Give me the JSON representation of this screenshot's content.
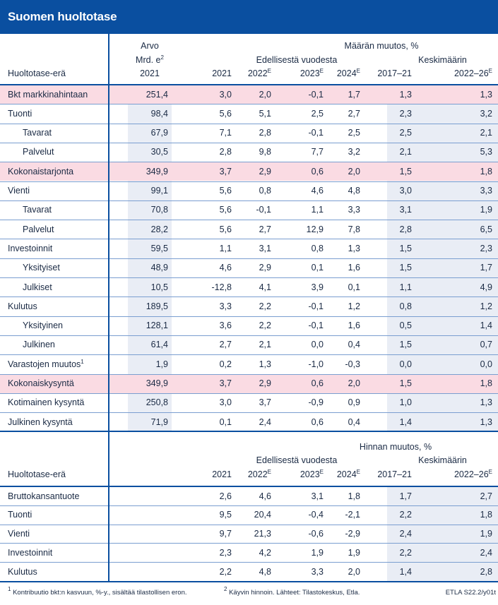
{
  "title": "Suomen huoltotase",
  "header1": {
    "col_label": "Huoltotase-erä",
    "value_line1": "Arvo",
    "value_line2": "Mrd. e",
    "value_line2_sup": "2",
    "value_line3": "2021",
    "group_title": "Määrän muutos, %",
    "sub1": "Edellisestä vuodesta",
    "sub2": "Keskimäärin",
    "years": [
      {
        "label": "2021",
        "sup": ""
      },
      {
        "label": "2022",
        "sup": "E"
      },
      {
        "label": "2023",
        "sup": "E"
      },
      {
        "label": "2024",
        "sup": "E"
      },
      {
        "label": "2017–21",
        "sup": ""
      },
      {
        "label": "2022–26",
        "sup": "E"
      }
    ]
  },
  "rows1": [
    {
      "label": "Bkt markkinahintaan",
      "sup": "",
      "indent": false,
      "highlight": true,
      "value": "251,4",
      "cells": [
        "3,0",
        "2,0",
        "-0,1",
        "1,7",
        "1,3",
        "1,3"
      ]
    },
    {
      "label": "Tuonti",
      "sup": "",
      "indent": false,
      "highlight": false,
      "value": "98,4",
      "cells": [
        "5,6",
        "5,1",
        "2,5",
        "2,7",
        "2,3",
        "3,2"
      ]
    },
    {
      "label": "Tavarat",
      "sup": "",
      "indent": true,
      "highlight": false,
      "value": "67,9",
      "cells": [
        "7,1",
        "2,8",
        "-0,1",
        "2,5",
        "2,5",
        "2,1"
      ]
    },
    {
      "label": "Palvelut",
      "sup": "",
      "indent": true,
      "highlight": false,
      "value": "30,5",
      "cells": [
        "2,8",
        "9,8",
        "7,7",
        "3,2",
        "2,1",
        "5,3"
      ]
    },
    {
      "label": "Kokonaistarjonta",
      "sup": "",
      "indent": false,
      "highlight": true,
      "value": "349,9",
      "cells": [
        "3,7",
        "2,9",
        "0,6",
        "2,0",
        "1,5",
        "1,8"
      ]
    },
    {
      "label": "Vienti",
      "sup": "",
      "indent": false,
      "highlight": false,
      "value": "99,1",
      "cells": [
        "5,6",
        "0,8",
        "4,6",
        "4,8",
        "3,0",
        "3,3"
      ]
    },
    {
      "label": "Tavarat",
      "sup": "",
      "indent": true,
      "highlight": false,
      "value": "70,8",
      "cells": [
        "5,6",
        "-0,1",
        "1,1",
        "3,3",
        "3,1",
        "1,9"
      ]
    },
    {
      "label": "Palvelut",
      "sup": "",
      "indent": true,
      "highlight": false,
      "value": "28,2",
      "cells": [
        "5,6",
        "2,7",
        "12,9",
        "7,8",
        "2,8",
        "6,5"
      ]
    },
    {
      "label": "Investoinnit",
      "sup": "",
      "indent": false,
      "highlight": false,
      "value": "59,5",
      "cells": [
        "1,1",
        "3,1",
        "0,8",
        "1,3",
        "1,5",
        "2,3"
      ]
    },
    {
      "label": "Yksityiset",
      "sup": "",
      "indent": true,
      "highlight": false,
      "value": "48,9",
      "cells": [
        "4,6",
        "2,9",
        "0,1",
        "1,6",
        "1,5",
        "1,7"
      ]
    },
    {
      "label": "Julkiset",
      "sup": "",
      "indent": true,
      "highlight": false,
      "value": "10,5",
      "cells": [
        "-12,8",
        "4,1",
        "3,9",
        "0,1",
        "1,1",
        "4,9"
      ]
    },
    {
      "label": "Kulutus",
      "sup": "",
      "indent": false,
      "highlight": false,
      "value": "189,5",
      "cells": [
        "3,3",
        "2,2",
        "-0,1",
        "1,2",
        "0,8",
        "1,2"
      ]
    },
    {
      "label": "Yksityinen",
      "sup": "",
      "indent": true,
      "highlight": false,
      "value": "128,1",
      "cells": [
        "3,6",
        "2,2",
        "-0,1",
        "1,6",
        "0,5",
        "1,4"
      ]
    },
    {
      "label": "Julkinen",
      "sup": "",
      "indent": true,
      "highlight": false,
      "value": "61,4",
      "cells": [
        "2,7",
        "2,1",
        "0,0",
        "0,4",
        "1,5",
        "0,7"
      ]
    },
    {
      "label": "Varastojen muutos",
      "sup": "1",
      "indent": false,
      "highlight": false,
      "value": "1,9",
      "cells": [
        "0,2",
        "1,3",
        "-1,0",
        "-0,3",
        "0,0",
        "0,0"
      ]
    },
    {
      "label": "Kokonaiskysyntä",
      "sup": "",
      "indent": false,
      "highlight": true,
      "value": "349,9",
      "cells": [
        "3,7",
        "2,9",
        "0,6",
        "2,0",
        "1,5",
        "1,8"
      ]
    },
    {
      "label": "Kotimainen kysyntä",
      "sup": "",
      "indent": false,
      "highlight": false,
      "value": "250,8",
      "cells": [
        "3,0",
        "3,7",
        "-0,9",
        "0,9",
        "1,0",
        "1,3"
      ]
    },
    {
      "label": "Julkinen kysyntä",
      "sup": "",
      "indent": false,
      "highlight": false,
      "value": "71,9",
      "cells": [
        "0,1",
        "2,4",
        "0,6",
        "0,4",
        "1,4",
        "1,3"
      ]
    }
  ],
  "header2": {
    "col_label": "Huoltotase-erä",
    "group_title": "Hinnan muutos, %",
    "sub1": "Edellisestä vuodesta",
    "sub2": "Keskimäärin",
    "years": [
      {
        "label": "2021",
        "sup": ""
      },
      {
        "label": "2022",
        "sup": "E"
      },
      {
        "label": "2023",
        "sup": "E"
      },
      {
        "label": "2024",
        "sup": "E"
      },
      {
        "label": "2017–21",
        "sup": ""
      },
      {
        "label": "2022–26",
        "sup": "E"
      }
    ]
  },
  "rows2": [
    {
      "label": "Bruttokansantuote",
      "cells": [
        "2,6",
        "4,6",
        "3,1",
        "1,8",
        "1,7",
        "2,7"
      ]
    },
    {
      "label": "Tuonti",
      "cells": [
        "9,5",
        "20,4",
        "-0,4",
        "-2,1",
        "2,2",
        "1,8"
      ]
    },
    {
      "label": "Vienti",
      "cells": [
        "9,7",
        "21,3",
        "-0,6",
        "-2,9",
        "2,4",
        "1,9"
      ]
    },
    {
      "label": "Investoinnit",
      "cells": [
        "2,3",
        "4,2",
        "1,9",
        "1,9",
        "2,2",
        "2,4"
      ]
    },
    {
      "label": "Kulutus",
      "cells": [
        "2,2",
        "4,8",
        "3,3",
        "2,0",
        "1,4",
        "2,8"
      ]
    }
  ],
  "footnote": {
    "note1_sup": "1",
    "note1": "Kontribuutio bkt:n kasvuun, %-y., sisältää tilastollisen eron.",
    "note2_sup": "2",
    "note2": "Käyvin hinnoin. Lähteet: Tilastokeskus, Etla.",
    "code": "ETLA S22.2/y01t"
  }
}
